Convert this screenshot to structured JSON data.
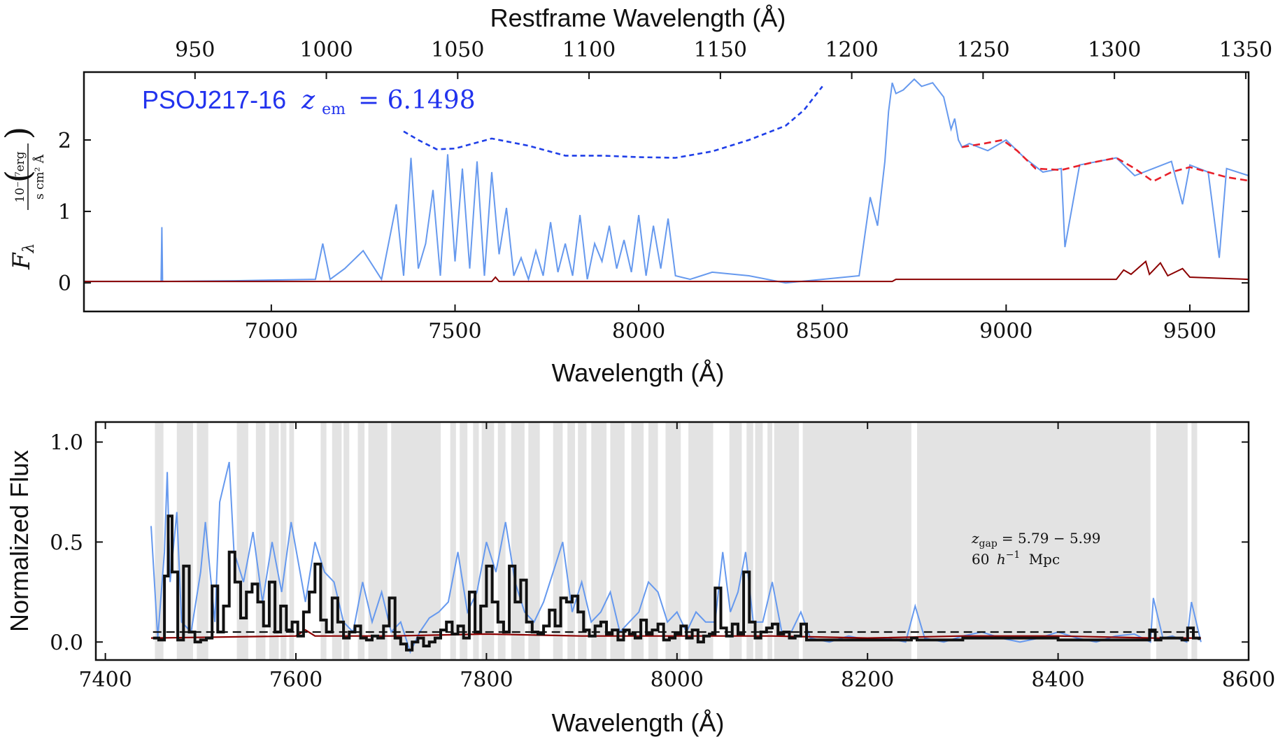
{
  "colors": {
    "flux": "#6699ee",
    "error": "#8b0000",
    "continuum": "#e8202a",
    "pca_upper": "#1f3fe8",
    "binned": "#111111",
    "gap_shade": "#e3e3e3",
    "threshold": "#111111"
  },
  "chart_data": [
    {
      "type": "line",
      "panel": "top",
      "label": {
        "object": "PSOJ217-16",
        "z_sym": "z",
        "z_sub": "em",
        "z_val": "= 6.1498"
      },
      "top_axis": {
        "title": "Restframe Wavelength (Å)",
        "ticks": [
          950,
          1000,
          1050,
          1100,
          1150,
          1200,
          1250,
          1300,
          1350
        ],
        "z": 6.1498
      },
      "xlabel": "Wavelength (Å)",
      "ylabel": {
        "symbol": "F",
        "subscript": "λ",
        "unit_num": "10⁻¹⁷erg",
        "unit_den": "s cm² Å"
      },
      "xlim": [
        6490,
        9660
      ],
      "ylim": [
        -0.4,
        2.95
      ],
      "xticks": [
        7000,
        7500,
        8000,
        8500,
        9000,
        9500
      ],
      "yticks": [
        0,
        1,
        2
      ],
      "series": [
        {
          "role": "flux",
          "x": [
            6490,
            6700,
            6702,
            6704,
            6900,
            7120,
            7140,
            7160,
            7200,
            7250,
            7300,
            7340,
            7360,
            7380,
            7400,
            7420,
            7440,
            7460,
            7480,
            7500,
            7520,
            7540,
            7560,
            7580,
            7600,
            7620,
            7640,
            7660,
            7680,
            7700,
            7720,
            7740,
            7760,
            7780,
            7800,
            7820,
            7840,
            7860,
            7880,
            7900,
            7920,
            7940,
            7960,
            7980,
            8000,
            8020,
            8040,
            8060,
            8080,
            8100,
            8140,
            8200,
            8300,
            8400,
            8500,
            8600,
            8630,
            8650,
            8670,
            8680,
            8690,
            8700,
            8720,
            8750,
            8770,
            8800,
            8830,
            8850,
            8860,
            8870,
            8880,
            8900,
            8950,
            9000,
            9050,
            9100,
            9150,
            9160,
            9200,
            9250,
            9300,
            9350,
            9400,
            9450,
            9480,
            9500,
            9550,
            9580,
            9600,
            9660
          ],
          "y": [
            0.02,
            0.02,
            0.78,
            0.02,
            0.03,
            0.05,
            0.55,
            0.05,
            0.2,
            0.45,
            0.05,
            1.1,
            0.1,
            1.75,
            0.2,
            0.55,
            1.3,
            0.1,
            1.8,
            0.3,
            1.6,
            0.2,
            1.7,
            0.1,
            1.55,
            0.4,
            1.05,
            0.1,
            0.35,
            0.05,
            0.45,
            0.1,
            0.85,
            0.15,
            0.55,
            0.1,
            0.95,
            0.05,
            0.55,
            0.3,
            0.8,
            0.2,
            0.6,
            0.15,
            0.95,
            0.1,
            0.8,
            0.2,
            0.9,
            0.1,
            0.05,
            0.15,
            0.1,
            0.0,
            0.05,
            0.1,
            1.2,
            0.8,
            1.7,
            2.4,
            2.8,
            2.65,
            2.7,
            2.85,
            2.75,
            2.8,
            2.6,
            2.15,
            2.3,
            2.0,
            1.9,
            1.95,
            1.85,
            2.0,
            1.75,
            1.55,
            1.6,
            0.5,
            1.65,
            1.7,
            1.75,
            1.5,
            1.6,
            1.7,
            1.1,
            1.65,
            1.55,
            0.35,
            1.6,
            1.5
          ]
        },
        {
          "role": "error",
          "x": [
            6490,
            7600,
            7610,
            7620,
            8690,
            8700,
            9300,
            9320,
            9340,
            9380,
            9390,
            9420,
            9440,
            9480,
            9500,
            9660
          ],
          "y": [
            0.02,
            0.02,
            0.08,
            0.02,
            0.02,
            0.05,
            0.05,
            0.18,
            0.12,
            0.3,
            0.12,
            0.28,
            0.1,
            0.2,
            0.08,
            0.05
          ]
        },
        {
          "role": "continuum",
          "x": [
            8880,
            8940,
            8990,
            9030,
            9080,
            9150,
            9230,
            9300,
            9350,
            9400,
            9450,
            9500,
            9550,
            9600,
            9660
          ],
          "y": [
            1.9,
            1.95,
            2.0,
            1.85,
            1.6,
            1.58,
            1.68,
            1.75,
            1.6,
            1.42,
            1.55,
            1.62,
            1.55,
            1.48,
            1.43
          ]
        },
        {
          "role": "pca_upper",
          "x": [
            7360,
            7400,
            7450,
            7500,
            7600,
            7700,
            7800,
            7900,
            8000,
            8100,
            8200,
            8300,
            8400,
            8450,
            8500
          ],
          "y": [
            2.12,
            2.0,
            1.87,
            1.88,
            2.02,
            1.92,
            1.78,
            1.78,
            1.76,
            1.75,
            1.84,
            2.0,
            2.2,
            2.42,
            2.75
          ]
        }
      ]
    },
    {
      "type": "line",
      "panel": "bottom",
      "annotation": {
        "line1_sym": "z",
        "line1_sub": "gap",
        "line1_val": "= 5.79 − 5.99",
        "line2_pre": "60",
        "line2_h": "h",
        "line2_exp": "−1",
        "line2_post": "Mpc"
      },
      "xlabel": "Wavelength (Å)",
      "ylabel": "Normalized Flux",
      "xlim": [
        7390,
        8600
      ],
      "ylim": [
        -0.09,
        1.1
      ],
      "xticks": [
        7400,
        7600,
        7800,
        8000,
        8200,
        8400,
        8600
      ],
      "yticks": [
        0.0,
        0.5,
        1.0
      ],
      "ytick_labels": [
        "0.0",
        "0.5",
        "1.0"
      ],
      "threshold": 0.05,
      "gaps": [
        [
          7452,
          7461
        ],
        [
          7475,
          7492
        ],
        [
          7496,
          7508
        ],
        [
          7538,
          7550
        ],
        [
          7558,
          7568
        ],
        [
          7572,
          7582
        ],
        [
          7584,
          7590
        ],
        [
          7593,
          7598
        ],
        [
          7626,
          7632
        ],
        [
          7638,
          7648
        ],
        [
          7650,
          7656
        ],
        [
          7665,
          7672
        ],
        [
          7676,
          7696
        ],
        [
          7700,
          7752
        ],
        [
          7762,
          7768
        ],
        [
          7772,
          7780
        ],
        [
          7786,
          7792
        ],
        [
          7795,
          7808
        ],
        [
          7812,
          7820
        ],
        [
          7826,
          7840
        ],
        [
          7844,
          7856
        ],
        [
          7870,
          7880
        ],
        [
          7885,
          7893
        ],
        [
          7896,
          7905
        ],
        [
          7910,
          7926
        ],
        [
          7930,
          7945
        ],
        [
          7952,
          7965
        ],
        [
          7970,
          7980
        ],
        [
          7988,
          8004
        ],
        [
          8012,
          8038
        ],
        [
          8055,
          8068
        ],
        [
          8073,
          8080
        ],
        [
          8082,
          8090
        ],
        [
          8095,
          8100
        ],
        [
          8102,
          8128
        ],
        [
          8132,
          8246
        ],
        [
          8252,
          8497
        ],
        [
          8503,
          8536
        ],
        [
          8540,
          8546
        ]
      ],
      "flux": {
        "x": [
          7448,
          7455,
          7462,
          7465,
          7468,
          7475,
          7480,
          7490,
          7500,
          7505,
          7515,
          7520,
          7530,
          7535,
          7545,
          7555,
          7565,
          7575,
          7585,
          7595,
          7610,
          7620,
          7630,
          7640,
          7650,
          7660,
          7670,
          7680,
          7690,
          7700,
          7710,
          7720,
          7730,
          7740,
          7750,
          7760,
          7770,
          7780,
          7790,
          7800,
          7810,
          7820,
          7830,
          7840,
          7850,
          7860,
          7870,
          7880,
          7890,
          7900,
          7910,
          7920,
          7930,
          7940,
          7950,
          7960,
          7970,
          7980,
          7990,
          8000,
          8010,
          8020,
          8030,
          8040,
          8048,
          8056,
          8064,
          8072,
          8080,
          8090,
          8100,
          8110,
          8120,
          8130,
          8140,
          8160,
          8180,
          8200,
          8220,
          8240,
          8250,
          8260,
          8280,
          8300,
          8320,
          8340,
          8360,
          8380,
          8400,
          8420,
          8440,
          8460,
          8480,
          8497,
          8500,
          8510,
          8520,
          8535,
          8540,
          8550
        ],
        "y": [
          0.58,
          0.02,
          0.45,
          0.85,
          0.3,
          0.65,
          0.1,
          0.05,
          0.35,
          0.6,
          0.1,
          0.7,
          0.9,
          0.45,
          0.3,
          0.55,
          0.2,
          0.5,
          0.25,
          0.6,
          0.2,
          0.5,
          0.35,
          0.3,
          0.1,
          0.05,
          0.3,
          0.1,
          0.25,
          0.05,
          0.1,
          -0.05,
          0.05,
          0.12,
          0.15,
          0.2,
          0.45,
          0.15,
          0.25,
          0.5,
          0.35,
          0.6,
          0.3,
          0.15,
          0.1,
          0.2,
          0.35,
          0.5,
          0.15,
          0.3,
          0.1,
          0.15,
          0.25,
          0.05,
          0.1,
          0.15,
          0.3,
          0.25,
          0.1,
          0.15,
          0.05,
          0.15,
          0.1,
          0.1,
          0.45,
          0.15,
          0.25,
          0.45,
          0.1,
          0.1,
          0.3,
          0.05,
          0.05,
          0.15,
          0.02,
          0.0,
          0.03,
          0.01,
          0.02,
          0.0,
          0.18,
          0.02,
          0.0,
          0.03,
          0.05,
          0.02,
          0.0,
          0.02,
          0.05,
          0.02,
          0.0,
          0.03,
          0.04,
          0.0,
          0.22,
          0.02,
          0.03,
          0.0,
          0.2,
          0.0
        ]
      },
      "error": {
        "x": [
          7448,
          7600,
          7610,
          7620,
          7700,
          7800,
          7900,
          8000,
          8100,
          8200,
          8300,
          8400,
          8500,
          8550
        ],
        "y": [
          0.02,
          0.03,
          0.06,
          0.03,
          0.03,
          0.04,
          0.03,
          0.03,
          0.03,
          0.02,
          0.03,
          0.03,
          0.02,
          0.02
        ]
      },
      "binned": {
        "x": [
          7450,
          7456,
          7462,
          7466,
          7470,
          7476,
          7482,
          7488,
          7494,
          7500,
          7506,
          7512,
          7518,
          7524,
          7530,
          7536,
          7542,
          7548,
          7554,
          7560,
          7566,
          7572,
          7578,
          7584,
          7590,
          7596,
          7602,
          7608,
          7614,
          7620,
          7626,
          7632,
          7638,
          7644,
          7650,
          7656,
          7662,
          7668,
          7674,
          7680,
          7686,
          7692,
          7698,
          7704,
          7710,
          7716,
          7722,
          7728,
          7734,
          7740,
          7746,
          7752,
          7758,
          7764,
          7770,
          7776,
          7782,
          7788,
          7794,
          7800,
          7806,
          7812,
          7818,
          7824,
          7830,
          7836,
          7842,
          7848,
          7854,
          7860,
          7866,
          7872,
          7878,
          7884,
          7890,
          7896,
          7902,
          7908,
          7914,
          7920,
          7926,
          7932,
          7938,
          7944,
          7950,
          7956,
          7962,
          7968,
          7974,
          7980,
          7986,
          7992,
          7998,
          8004,
          8010,
          8016,
          8022,
          8028,
          8034,
          8040,
          8046,
          8052,
          8058,
          8064,
          8070,
          8076,
          8082,
          8088,
          8094,
          8100,
          8106,
          8112,
          8118,
          8124,
          8130,
          8136,
          8200,
          8246,
          8252,
          8300,
          8400,
          8496,
          8502,
          8508,
          8530,
          8536,
          8542,
          8548
        ],
        "y": [
          0.02,
          0.01,
          0.33,
          0.63,
          0.35,
          0.01,
          0.38,
          0.05,
          0.0,
          0.01,
          0.02,
          0.28,
          0.05,
          0.18,
          0.45,
          0.3,
          0.12,
          0.25,
          0.29,
          0.2,
          0.08,
          0.3,
          0.05,
          0.18,
          0.06,
          0.1,
          0.03,
          0.15,
          0.25,
          0.39,
          0.11,
          0.05,
          0.22,
          0.1,
          0.02,
          0.05,
          0.08,
          0.02,
          0.01,
          0.03,
          0.02,
          0.08,
          0.22,
          0.02,
          -0.01,
          -0.04,
          0.0,
          0.02,
          -0.02,
          0.0,
          0.02,
          0.06,
          0.1,
          0.04,
          0.08,
          0.02,
          0.25,
          0.05,
          0.18,
          0.38,
          0.2,
          0.1,
          0.05,
          0.38,
          0.2,
          0.31,
          0.1,
          0.05,
          0.04,
          0.08,
          0.16,
          0.08,
          0.22,
          0.2,
          0.23,
          0.15,
          0.06,
          0.03,
          0.08,
          0.1,
          0.04,
          0.06,
          0.01,
          0.06,
          0.04,
          0.02,
          0.11,
          0.04,
          0.06,
          0.09,
          0.01,
          0.02,
          0.04,
          0.08,
          0.02,
          0.06,
          0.0,
          0.03,
          0.04,
          0.27,
          0.07,
          0.03,
          0.09,
          0.04,
          0.35,
          0.1,
          0.02,
          0.05,
          0.07,
          0.09,
          0.04,
          0.05,
          0.02,
          0.03,
          0.09,
          0.01,
          0.01,
          0.02,
          0.01,
          0.02,
          0.01,
          0.06,
          0.01,
          0.02,
          0.01,
          0.07,
          0.02,
          0.01
        ]
      }
    }
  ]
}
